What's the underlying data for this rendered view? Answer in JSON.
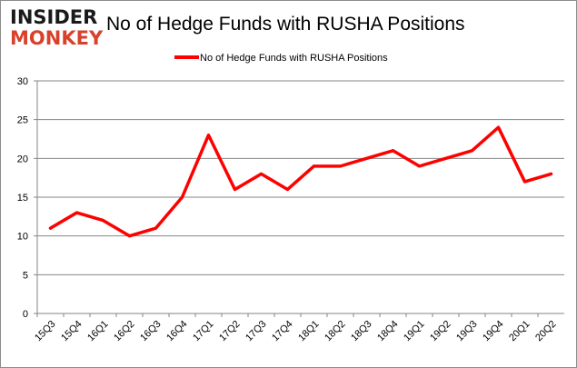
{
  "logo": {
    "line1": "INSIDER",
    "line2": "MONKEY"
  },
  "colors": {
    "series": "#ff0000",
    "grid": "#868686",
    "logo_dark": "#1a1a1a",
    "logo_red": "#d9412b"
  },
  "chart_data": {
    "type": "line",
    "title": "No of Hedge Funds with RUSHA Positions",
    "legend": "No of Hedge Funds with RUSHA Positions",
    "legend_position": "top",
    "xlabel": "",
    "ylabel": "",
    "categories": [
      "15Q3",
      "15Q4",
      "16Q1",
      "16Q2",
      "16Q3",
      "16Q4",
      "17Q1",
      "17Q2",
      "17Q3",
      "17Q4",
      "18Q1",
      "18Q2",
      "18Q3",
      "18Q4",
      "19Q1",
      "19Q2",
      "19Q3",
      "19Q4",
      "20Q1",
      "20Q2"
    ],
    "series": [
      {
        "name": "No of Hedge Funds with RUSHA Positions",
        "values": [
          11,
          13,
          12,
          10,
          11,
          15,
          23,
          16,
          18,
          16,
          19,
          19,
          20,
          21,
          19,
          20,
          21,
          24,
          17,
          18
        ]
      }
    ],
    "ylim": [
      0,
      30
    ],
    "yticks": [
      0,
      5,
      10,
      15,
      20,
      25,
      30
    ],
    "grid": true
  }
}
